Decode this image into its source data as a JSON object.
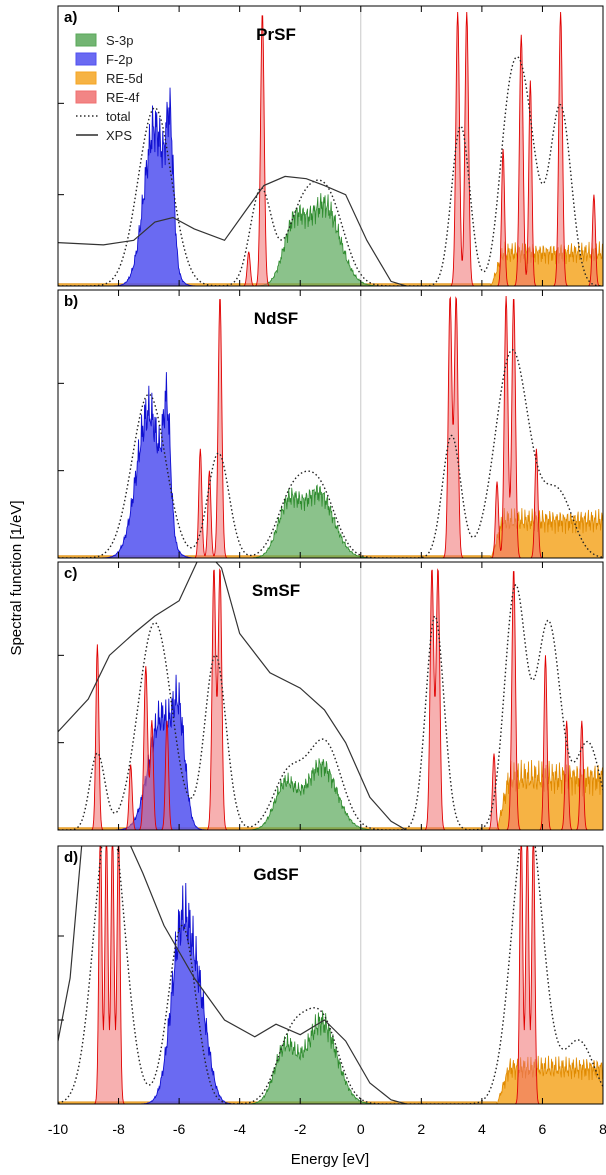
{
  "chart_data": {
    "type": "area",
    "xlabel": "Energy [eV]",
    "ylabel": "Spectral function [1/eV]",
    "xlim": [
      -10,
      8
    ],
    "x_ticks": [
      "-10",
      "-8",
      "-6",
      "-4",
      "-2",
      "0",
      "2",
      "4",
      "6",
      "8"
    ],
    "legend": {
      "placement": "top-left (panel a)",
      "entries": [
        {
          "label": "S-3p",
          "color": "#5aa85a",
          "style": "fill"
        },
        {
          "label": "F-2p",
          "color": "#5050f0",
          "style": "fill"
        },
        {
          "label": "RE-5d",
          "color": "#f5a623",
          "style": "fill"
        },
        {
          "label": "RE-4f",
          "color": "#f07070",
          "style": "fill"
        },
        {
          "label": "total",
          "color": "#000000",
          "style": "dotted"
        },
        {
          "label": "XPS",
          "color": "#000000",
          "style": "solid"
        }
      ]
    },
    "panels": [
      {
        "letter": "a)",
        "title": "PrSF",
        "S3p": [
          {
            "c": -2.2,
            "h": 0.28,
            "w": 0.35
          },
          {
            "c": -1.2,
            "h": 0.38,
            "w": 0.5
          }
        ],
        "F2p": [
          {
            "c": -6.8,
            "h": 0.75,
            "w": 0.35
          },
          {
            "c": -6.3,
            "h": 0.55,
            "w": 0.12
          }
        ],
        "RE4f": [
          {
            "c": -3.25,
            "h": 1.2,
            "w": 0.06
          },
          {
            "c": -3.7,
            "h": 0.15,
            "w": 0.05
          },
          {
            "c": 3.2,
            "h": 1.2,
            "w": 0.06
          },
          {
            "c": 3.5,
            "h": 1.2,
            "w": 0.06
          },
          {
            "c": 4.7,
            "h": 0.6,
            "w": 0.05
          },
          {
            "c": 5.3,
            "h": 1.1,
            "w": 0.06
          },
          {
            "c": 5.6,
            "h": 0.9,
            "w": 0.05
          },
          {
            "c": 6.6,
            "h": 1.2,
            "w": 0.06
          },
          {
            "c": 7.7,
            "h": 0.4,
            "w": 0.05
          }
        ],
        "RE5d_range": [
          4.3,
          8.0
        ],
        "RE5d_level": 0.17,
        "total": [
          {
            "c": -6.8,
            "h": 0.78,
            "w": 0.55
          },
          {
            "c": -3.3,
            "h": 0.42,
            "w": 0.35
          },
          {
            "c": -2.0,
            "h": 0.28,
            "w": 0.5
          },
          {
            "c": -1.1,
            "h": 0.38,
            "w": 0.55
          },
          {
            "c": 3.3,
            "h": 0.7,
            "w": 0.3
          },
          {
            "c": 5.3,
            "h": 0.9,
            "w": 0.45
          },
          {
            "c": 6.6,
            "h": 0.78,
            "w": 0.35
          },
          {
            "c": 4.8,
            "h": 0.3,
            "w": 0.3
          }
        ],
        "xps": [
          [
            -10,
            0.19
          ],
          [
            -8.5,
            0.18
          ],
          [
            -7.5,
            0.2
          ],
          [
            -6.8,
            0.28
          ],
          [
            -6.2,
            0.3
          ],
          [
            -5.5,
            0.25
          ],
          [
            -4.5,
            0.2
          ],
          [
            -3.8,
            0.33
          ],
          [
            -3.2,
            0.44
          ],
          [
            -2.5,
            0.48
          ],
          [
            -1.8,
            0.47
          ],
          [
            -1.2,
            0.44
          ],
          [
            -0.5,
            0.4
          ],
          [
            0.2,
            0.2
          ],
          [
            1.0,
            0.02
          ],
          [
            1.5,
            0.0
          ]
        ]
      },
      {
        "letter": "b)",
        "title": "NdSF",
        "S3p": [
          {
            "c": -2.4,
            "h": 0.25,
            "w": 0.35
          },
          {
            "c": -1.4,
            "h": 0.32,
            "w": 0.5
          }
        ],
        "F2p": [
          {
            "c": -7.0,
            "h": 0.72,
            "w": 0.4
          },
          {
            "c": -6.4,
            "h": 0.55,
            "w": 0.12
          }
        ],
        "RE4f": [
          {
            "c": -4.65,
            "h": 1.2,
            "w": 0.06
          },
          {
            "c": -5.3,
            "h": 0.5,
            "w": 0.05
          },
          {
            "c": -5.0,
            "h": 0.4,
            "w": 0.05
          },
          {
            "c": 2.95,
            "h": 1.2,
            "w": 0.06
          },
          {
            "c": 3.15,
            "h": 1.2,
            "w": 0.06
          },
          {
            "c": 4.8,
            "h": 1.2,
            "w": 0.06
          },
          {
            "c": 5.05,
            "h": 1.2,
            "w": 0.06
          },
          {
            "c": 5.8,
            "h": 0.5,
            "w": 0.05
          },
          {
            "c": 4.5,
            "h": 0.35,
            "w": 0.05
          }
        ],
        "RE5d_range": [
          4.3,
          8.0
        ],
        "RE5d_level": 0.2,
        "total": [
          {
            "c": -7.0,
            "h": 0.75,
            "w": 0.55
          },
          {
            "c": -4.7,
            "h": 0.48,
            "w": 0.35
          },
          {
            "c": -2.3,
            "h": 0.25,
            "w": 0.5
          },
          {
            "c": -1.4,
            "h": 0.32,
            "w": 0.55
          },
          {
            "c": 3.0,
            "h": 0.56,
            "w": 0.3
          },
          {
            "c": 5.0,
            "h": 0.95,
            "w": 0.55
          },
          {
            "c": 6.5,
            "h": 0.3,
            "w": 0.5
          }
        ],
        "xps": []
      },
      {
        "letter": "c)",
        "title": "SmSF",
        "S3p": [
          {
            "c": -2.5,
            "h": 0.22,
            "w": 0.35
          },
          {
            "c": -1.3,
            "h": 0.32,
            "w": 0.5
          }
        ],
        "F2p": [
          {
            "c": -6.6,
            "h": 0.55,
            "w": 0.4
          },
          {
            "c": -6.0,
            "h": 0.45,
            "w": 0.2
          }
        ],
        "RE4f": [
          {
            "c": -8.7,
            "h": 0.85,
            "w": 0.05
          },
          {
            "c": -7.6,
            "h": 0.3,
            "w": 0.05
          },
          {
            "c": -7.1,
            "h": 0.75,
            "w": 0.06
          },
          {
            "c": -6.9,
            "h": 0.5,
            "w": 0.05
          },
          {
            "c": -6.4,
            "h": 0.5,
            "w": 0.05
          },
          {
            "c": -4.85,
            "h": 1.2,
            "w": 0.06
          },
          {
            "c": -4.65,
            "h": 1.2,
            "w": 0.06
          },
          {
            "c": 2.35,
            "h": 1.2,
            "w": 0.06
          },
          {
            "c": 2.55,
            "h": 1.2,
            "w": 0.06
          },
          {
            "c": 5.05,
            "h": 1.2,
            "w": 0.06
          },
          {
            "c": 6.1,
            "h": 0.8,
            "w": 0.05
          },
          {
            "c": 6.8,
            "h": 0.5,
            "w": 0.05
          },
          {
            "c": 7.3,
            "h": 0.5,
            "w": 0.05
          },
          {
            "c": 4.4,
            "h": 0.35,
            "w": 0.05
          }
        ],
        "RE5d_range": [
          4.5,
          8.0
        ],
        "RE5d_level": 0.28,
        "total": [
          {
            "c": -8.7,
            "h": 0.35,
            "w": 0.25
          },
          {
            "c": -6.8,
            "h": 0.95,
            "w": 0.55
          },
          {
            "c": -4.8,
            "h": 0.8,
            "w": 0.35
          },
          {
            "c": -2.4,
            "h": 0.25,
            "w": 0.5
          },
          {
            "c": -1.2,
            "h": 0.4,
            "w": 0.55
          },
          {
            "c": 2.45,
            "h": 0.98,
            "w": 0.3
          },
          {
            "c": 5.1,
            "h": 1.1,
            "w": 0.35
          },
          {
            "c": 6.2,
            "h": 0.95,
            "w": 0.4
          },
          {
            "c": 7.5,
            "h": 0.4,
            "w": 0.4
          }
        ],
        "xps": [
          [
            -10,
            0.45
          ],
          [
            -9.0,
            0.6
          ],
          [
            -8.3,
            0.8
          ],
          [
            -7.5,
            0.9
          ],
          [
            -6.8,
            0.98
          ],
          [
            -6.0,
            1.05
          ],
          [
            -5.3,
            1.45
          ],
          [
            -5.0,
            1.55
          ],
          [
            -4.6,
            1.2
          ],
          [
            -4.0,
            0.9
          ],
          [
            -3.0,
            0.72
          ],
          [
            -2.0,
            0.65
          ],
          [
            -1.2,
            0.55
          ],
          [
            -0.5,
            0.4
          ],
          [
            0.3,
            0.15
          ],
          [
            1.0,
            0.04
          ],
          [
            1.5,
            0.0
          ]
        ]
      },
      {
        "letter": "d)",
        "title": "GdSF",
        "S3p": [
          {
            "c": -2.5,
            "h": 0.28,
            "w": 0.35
          },
          {
            "c": -1.3,
            "h": 0.42,
            "w": 0.5
          }
        ],
        "F2p": [
          {
            "c": -5.9,
            "h": 0.9,
            "w": 0.35
          },
          {
            "c": -5.3,
            "h": 0.4,
            "w": 0.3
          }
        ],
        "RE4f": [
          {
            "c": -8.6,
            "h": 1.3,
            "w": 0.05
          },
          {
            "c": -8.4,
            "h": 1.3,
            "w": 0.05
          },
          {
            "c": -8.2,
            "h": 1.3,
            "w": 0.05
          },
          {
            "c": -8.0,
            "h": 1.3,
            "w": 0.05
          },
          {
            "c": 5.3,
            "h": 1.3,
            "w": 0.05
          },
          {
            "c": 5.5,
            "h": 1.3,
            "w": 0.05
          },
          {
            "c": 5.7,
            "h": 1.3,
            "w": 0.05
          }
        ],
        "RE5d_range": [
          4.5,
          8.0
        ],
        "RE5d_level": 0.2,
        "total": [
          {
            "c": -8.3,
            "h": 1.4,
            "w": 0.5
          },
          {
            "c": -5.9,
            "h": 0.85,
            "w": 0.45
          },
          {
            "c": -2.3,
            "h": 0.3,
            "w": 0.5
          },
          {
            "c": -1.3,
            "h": 0.4,
            "w": 0.55
          },
          {
            "c": 5.5,
            "h": 1.4,
            "w": 0.5
          },
          {
            "c": 7.2,
            "h": 0.3,
            "w": 0.5
          }
        ],
        "xps": [
          [
            -10,
            0.3
          ],
          [
            -9.6,
            0.6
          ],
          [
            -9.2,
            1.3
          ],
          [
            -8.5,
            1.5
          ],
          [
            -7.7,
            1.5
          ],
          [
            -7.2,
            1.1
          ],
          [
            -6.5,
            0.85
          ],
          [
            -5.5,
            0.6
          ],
          [
            -4.5,
            0.4
          ],
          [
            -3.5,
            0.32
          ],
          [
            -2.8,
            0.38
          ],
          [
            -2.0,
            0.33
          ],
          [
            -1.2,
            0.4
          ],
          [
            -0.5,
            0.3
          ],
          [
            0.3,
            0.1
          ],
          [
            1.0,
            0.02
          ],
          [
            1.5,
            0.0
          ]
        ]
      }
    ]
  }
}
